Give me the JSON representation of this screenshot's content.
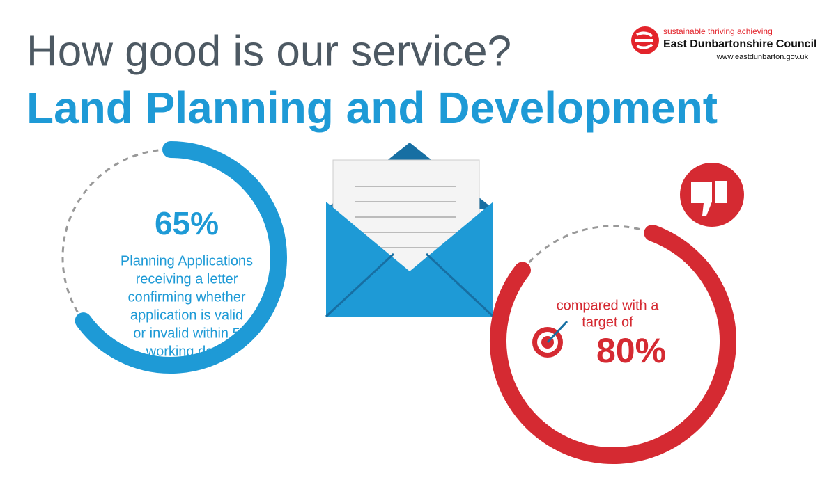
{
  "header": {
    "title": "How good is our service?",
    "subtitle": "Land Planning and Development"
  },
  "logo": {
    "tagline": "sustainable thriving achieving",
    "name": "East Dunbartonshire Council",
    "url": "www.eastdunbarton.gov.uk"
  },
  "performance": {
    "value": 65,
    "value_label": "65%",
    "description": [
      "Planning Applications",
      "receiving a letter",
      "confirming whether",
      "application is valid",
      "or invalid within 5",
      "working days"
    ]
  },
  "target": {
    "text": [
      "compared with a",
      "target of"
    ],
    "value": 80,
    "value_label": "80%"
  }
}
